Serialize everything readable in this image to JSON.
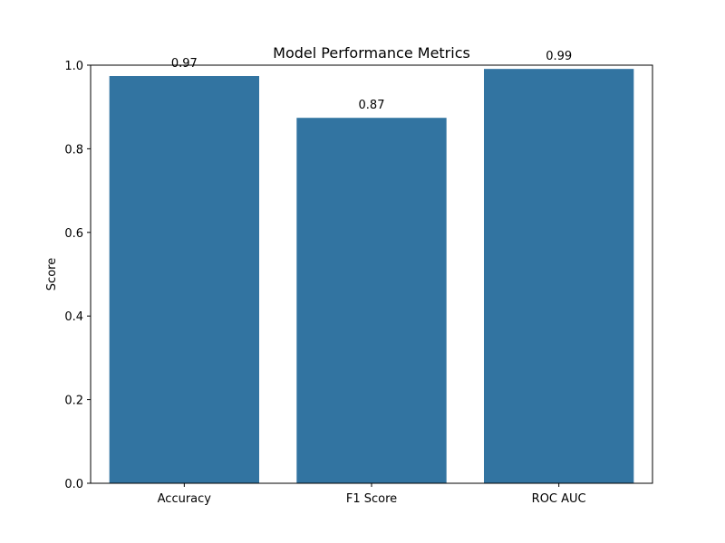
{
  "chart_data": {
    "type": "bar",
    "title": "Model Performance Metrics",
    "xlabel": "",
    "ylabel": "Score",
    "categories": [
      "Accuracy",
      "F1 Score",
      "ROC AUC"
    ],
    "values": [
      0.974,
      0.874,
      0.991
    ],
    "data_labels": [
      "0.97",
      "0.87",
      "0.99"
    ],
    "ylim": [
      0,
      1.0
    ],
    "yticks": [
      0.0,
      0.2,
      0.4,
      0.6,
      0.8,
      1.0
    ],
    "ytick_labels": [
      "0.0",
      "0.2",
      "0.4",
      "0.6",
      "0.8",
      "1.0"
    ],
    "grid": false,
    "legend": "none",
    "bar_color": "#3274a1"
  }
}
